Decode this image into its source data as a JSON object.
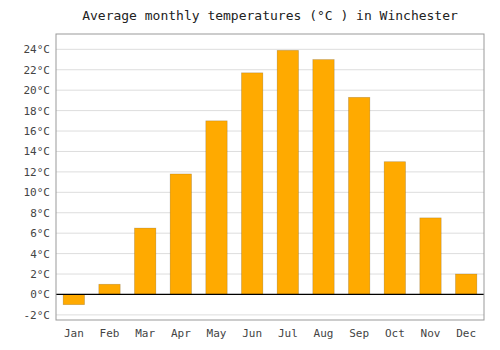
{
  "chart_data": {
    "type": "bar",
    "title": "Average monthly temperatures (°C ) in Winchester",
    "categories": [
      "Jan",
      "Feb",
      "Mar",
      "Apr",
      "May",
      "Jun",
      "Jul",
      "Aug",
      "Sep",
      "Oct",
      "Nov",
      "Dec"
    ],
    "values": [
      -1.0,
      1.0,
      6.5,
      11.8,
      17.0,
      21.7,
      23.9,
      23.0,
      19.3,
      13.0,
      7.5,
      2.0
    ],
    "color": "#FFAA00",
    "ylim": [
      -2.5,
      25.5
    ],
    "yticks": [
      {
        "value": -2,
        "label": "-2°C"
      },
      {
        "value": 0,
        "label": "0°C"
      },
      {
        "value": 2,
        "label": "2°C"
      },
      {
        "value": 4,
        "label": "4°C"
      },
      {
        "value": 6,
        "label": "6°C"
      },
      {
        "value": 8,
        "label": "8°C"
      },
      {
        "value": 10,
        "label": "10°C"
      },
      {
        "value": 12,
        "label": "12°C"
      },
      {
        "value": 14,
        "label": "14°C"
      },
      {
        "value": 16,
        "label": "16°C"
      },
      {
        "value": 18,
        "label": "18°C"
      },
      {
        "value": 20,
        "label": "20°C"
      },
      {
        "value": 22,
        "label": "22°C"
      },
      {
        "value": 24,
        "label": "24°C"
      }
    ],
    "grid": true
  }
}
